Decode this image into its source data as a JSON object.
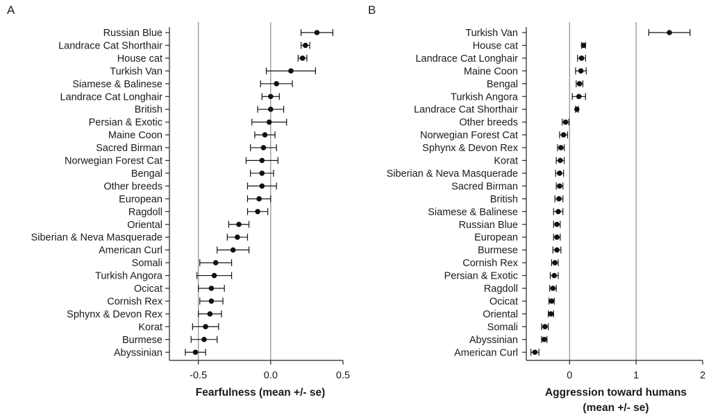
{
  "chart_data": [
    {
      "panel": "A",
      "type": "scatter",
      "orientation": "horizontal",
      "xlabel": "Fearfulness (mean +/- se)",
      "xlim": [
        -0.7,
        0.5
      ],
      "xticks": [
        -0.5,
        0.0,
        0.5
      ],
      "xtick_labels": [
        "-0.5",
        "0.0",
        "0.5"
      ],
      "reference_lines": [
        -0.5,
        0.0
      ],
      "categories": [
        "Russian Blue",
        "Landrace Cat Shorthair",
        "House cat",
        "Turkish Van",
        "Siamese & Balinese",
        "Landrace Cat Longhair",
        "British",
        "Persian & Exotic",
        "Maine Coon",
        "Sacred Birman",
        "Norwegian Forest Cat",
        "Bengal",
        "Other breeds",
        "European",
        "Ragdoll",
        "Oriental",
        "Siberian & Neva Masquerade",
        "American Curl",
        "Somali",
        "Turkish Angora",
        "Ocicat",
        "Cornish Rex",
        "Sphynx & Devon Rex",
        "Korat",
        "Burmese",
        "Abyssinian"
      ],
      "means": [
        0.32,
        0.24,
        0.22,
        0.14,
        0.04,
        0.0,
        0.0,
        -0.01,
        -0.04,
        -0.05,
        -0.06,
        -0.06,
        -0.06,
        -0.08,
        -0.09,
        -0.22,
        -0.23,
        -0.26,
        -0.38,
        -0.39,
        -0.41,
        -0.41,
        -0.42,
        -0.45,
        -0.46,
        -0.52
      ],
      "se": [
        0.11,
        0.03,
        0.03,
        0.17,
        0.11,
        0.06,
        0.09,
        0.12,
        0.07,
        0.09,
        0.11,
        0.08,
        0.1,
        0.08,
        0.07,
        0.07,
        0.07,
        0.11,
        0.11,
        0.12,
        0.09,
        0.08,
        0.08,
        0.09,
        0.09,
        0.07
      ]
    },
    {
      "panel": "B",
      "type": "scatter",
      "orientation": "horizontal",
      "xlabel_lines": [
        "Aggression toward humans",
        "(mean +/- se)"
      ],
      "xlim": [
        -0.65,
        2.0
      ],
      "xticks": [
        0,
        1,
        2
      ],
      "xtick_labels": [
        "0",
        "1",
        "2"
      ],
      "reference_lines": [
        0,
        1
      ],
      "categories": [
        "Turkish Van",
        "House cat",
        "Landrace Cat Longhair",
        "Maine Coon",
        "Bengal",
        "Turkish Angora",
        "Landrace Cat Shorthair",
        "Other breeds",
        "Norwegian Forest Cat",
        "Sphynx & Devon Rex",
        "Korat",
        "Siberian & Neva Masquerade",
        "Sacred Birman",
        "British",
        "Siamese & Balinese",
        "Russian Blue",
        "European",
        "Burmese",
        "Cornish Rex",
        "Persian & Exotic",
        "Ragdoll",
        "Ocicat",
        "Oriental",
        "Somali",
        "Abyssinian",
        "American Curl"
      ],
      "means": [
        1.5,
        0.21,
        0.18,
        0.17,
        0.15,
        0.14,
        0.11,
        -0.06,
        -0.09,
        -0.13,
        -0.14,
        -0.15,
        -0.15,
        -0.16,
        -0.17,
        -0.19,
        -0.19,
        -0.19,
        -0.22,
        -0.23,
        -0.25,
        -0.27,
        -0.28,
        -0.37,
        -0.38,
        -0.52
      ],
      "se": [
        0.31,
        0.03,
        0.06,
        0.08,
        0.05,
        0.1,
        0.02,
        0.05,
        0.06,
        0.05,
        0.06,
        0.06,
        0.05,
        0.06,
        0.07,
        0.05,
        0.05,
        0.06,
        0.05,
        0.06,
        0.05,
        0.04,
        0.04,
        0.05,
        0.04,
        0.06
      ]
    }
  ]
}
